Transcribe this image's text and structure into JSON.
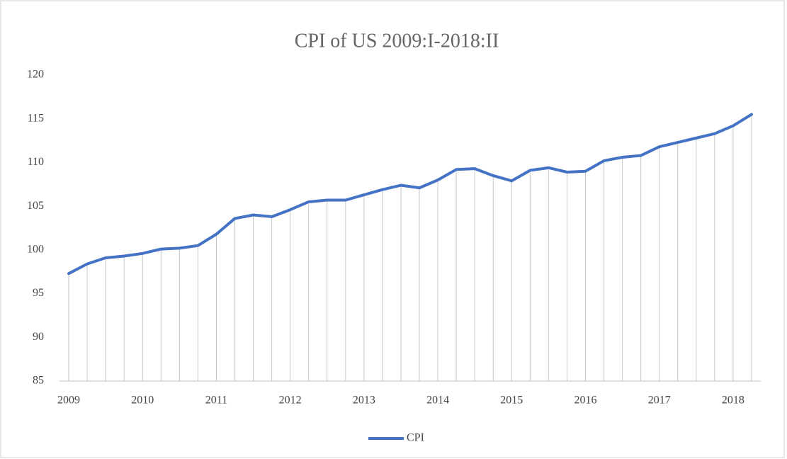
{
  "chart_data": {
    "type": "line",
    "title": "CPI of US 2009:I-2018:II",
    "categories": [
      "2009",
      null,
      null,
      null,
      "2010",
      null,
      null,
      null,
      "2011",
      null,
      null,
      null,
      "2012",
      null,
      null,
      null,
      "2013",
      null,
      null,
      null,
      "2014",
      null,
      null,
      null,
      "2015",
      null,
      null,
      null,
      "2016",
      null,
      null,
      null,
      "2017",
      null,
      null,
      null,
      "2018",
      null
    ],
    "series": [
      {
        "name": "CPI",
        "color": "#4472c4",
        "values": [
          97.3,
          98.4,
          99.1,
          99.3,
          99.6,
          100.1,
          100.2,
          100.5,
          101.8,
          103.6,
          104.0,
          103.8,
          104.6,
          105.5,
          105.7,
          105.7,
          106.3,
          106.9,
          107.4,
          107.1,
          108.0,
          109.2,
          109.3,
          108.5,
          107.9,
          109.1,
          109.4,
          108.9,
          109.0,
          110.2,
          110.6,
          110.8,
          111.8,
          112.3,
          112.8,
          113.3,
          114.2,
          115.5
        ]
      }
    ],
    "ylim": [
      85,
      120
    ],
    "yticks": [
      85,
      90,
      95,
      100,
      105,
      110,
      115,
      120
    ],
    "drop_lines": true,
    "legend": "bottom"
  }
}
